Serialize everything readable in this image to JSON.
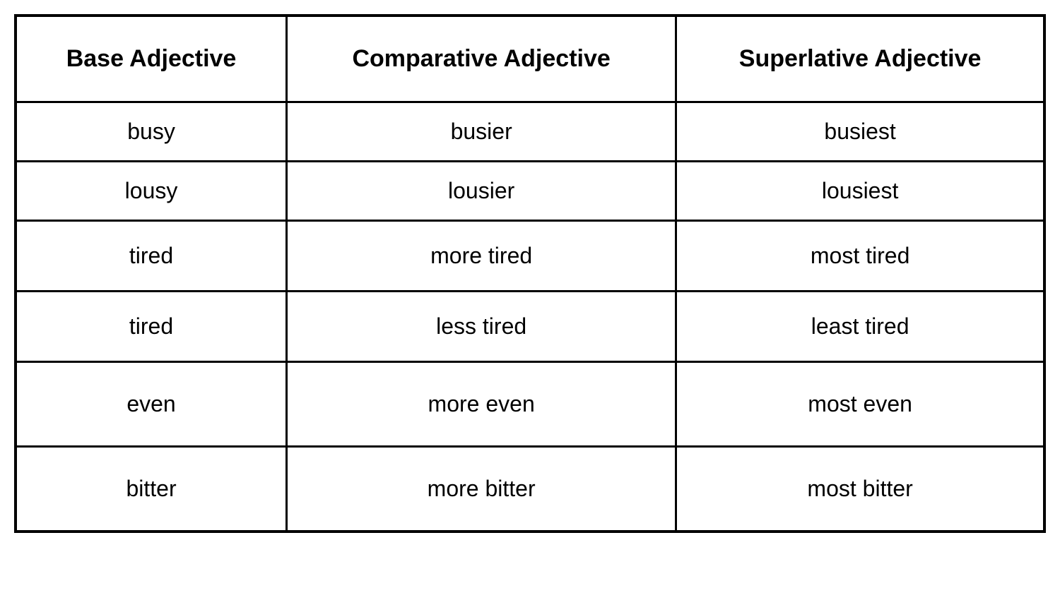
{
  "table": {
    "type": "table",
    "columns": [
      {
        "header": "Base Adjective"
      },
      {
        "header": "Comparative Adjective"
      },
      {
        "header": "Superlative Adjective"
      }
    ],
    "rows": [
      {
        "base": "busy",
        "comparative": "busier",
        "superlative": "busiest",
        "height": "short"
      },
      {
        "base": "lousy",
        "comparative": "lousier",
        "superlative": "lousiest",
        "height": "short"
      },
      {
        "base": "tired",
        "comparative": "more tired",
        "superlative": "most tired",
        "height": "normal"
      },
      {
        "base": "tired",
        "comparative": "less tired",
        "superlative": "least tired",
        "height": "normal"
      },
      {
        "base": "even",
        "comparative": "more even",
        "superlative": "most even",
        "height": "tall"
      },
      {
        "base": "bitter",
        "comparative": "more bitter",
        "superlative": "most bitter",
        "height": "tall"
      }
    ],
    "border_color": "#000000",
    "background_color": "#ffffff",
    "text_color": "#000000",
    "header_fontsize": 34,
    "cell_fontsize": 32,
    "header_fontweight": 700,
    "cell_fontweight": 400
  }
}
